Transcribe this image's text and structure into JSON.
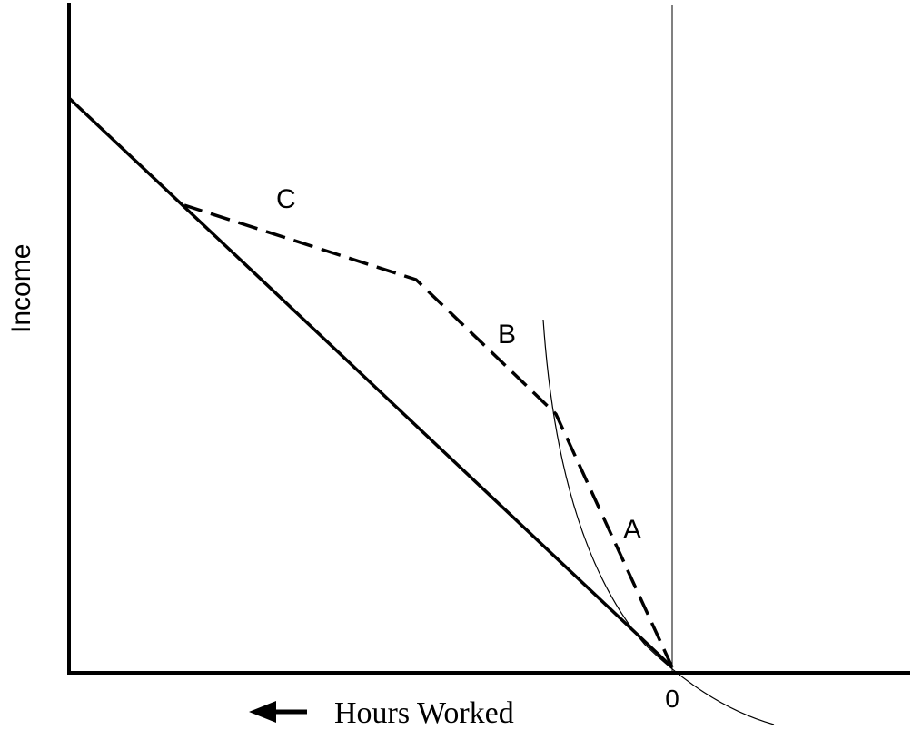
{
  "axes": {
    "y_label": "Income",
    "x_label": "Hours Worked",
    "origin_label": "0"
  },
  "segments": {
    "a": "A",
    "b": "B",
    "c": "C"
  }
}
